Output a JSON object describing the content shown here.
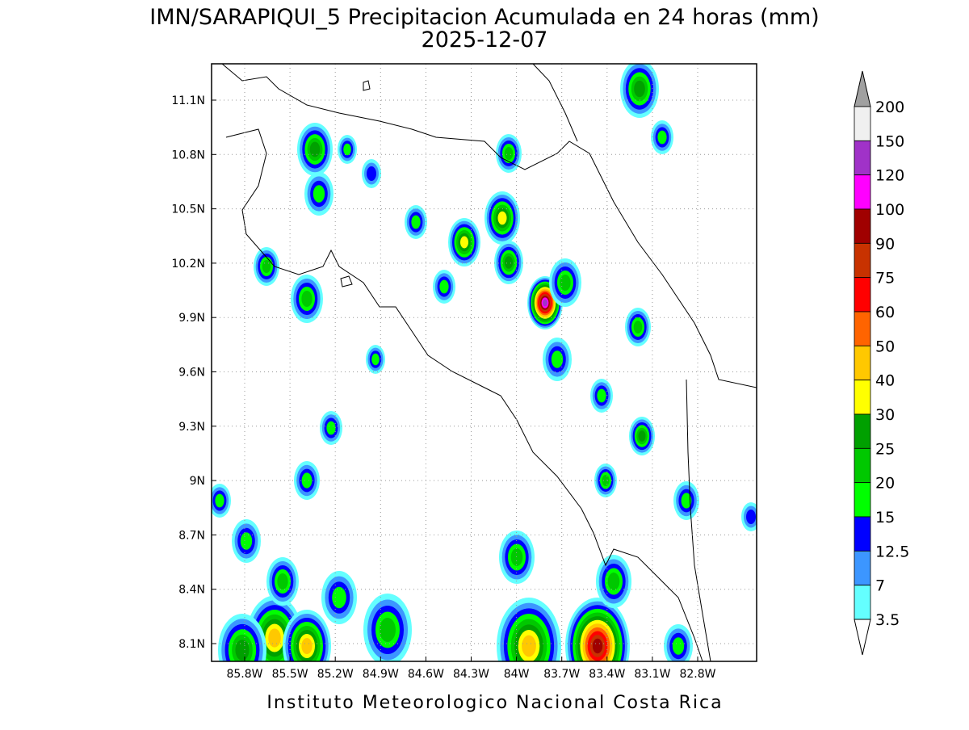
{
  "title": "IMN/SARAPIQUI_5 Precipitacion Acumulada en 24 horas (mm)",
  "subtitle": "2025-12-07",
  "footer": "Instituto Meteorologico Nacional Costa Rica",
  "map": {
    "lat_ticks": [
      "11.1N",
      "10.8N",
      "10.5N",
      "10.2N",
      "9.9N",
      "9.6N",
      "9.3N",
      "9N",
      "8.7N",
      "8.4N",
      "8.1N"
    ],
    "lon_ticks": [
      "85.8W",
      "85.5W",
      "85.2W",
      "84.9W",
      "84.6W",
      "84.3W",
      "84W",
      "83.7W",
      "83.4W",
      "83.1W",
      "82.8W"
    ]
  },
  "legend": {
    "levels": [
      200,
      150,
      120,
      100,
      90,
      75,
      60,
      50,
      40,
      30,
      25,
      20,
      15,
      12.5,
      7,
      3.5
    ],
    "colors": [
      "#f0f0f0",
      "#a032c8",
      "#ff00ff",
      "#a00000",
      "#c83200",
      "#ff0000",
      "#ff6400",
      "#ffc800",
      "#ffff00",
      "#00a000",
      "#00c800",
      "#00ff00",
      "#0000ff",
      "#3c96ff",
      "#64ffff"
    ],
    "over_color": "#a0a0a0",
    "under_color": "#ffffff"
  }
}
